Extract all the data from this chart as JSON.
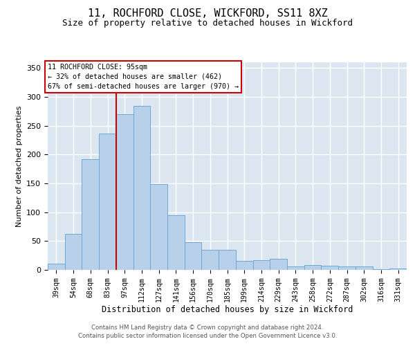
{
  "title_line1": "11, ROCHFORD CLOSE, WICKFORD, SS11 8XZ",
  "title_line2": "Size of property relative to detached houses in Wickford",
  "xlabel": "Distribution of detached houses by size in Wickford",
  "ylabel": "Number of detached properties",
  "categories": [
    "39sqm",
    "54sqm",
    "68sqm",
    "83sqm",
    "97sqm",
    "112sqm",
    "127sqm",
    "141sqm",
    "156sqm",
    "170sqm",
    "185sqm",
    "199sqm",
    "214sqm",
    "229sqm",
    "243sqm",
    "258sqm",
    "272sqm",
    "287sqm",
    "302sqm",
    "316sqm",
    "331sqm"
  ],
  "values": [
    11,
    62,
    192,
    237,
    270,
    285,
    149,
    95,
    48,
    35,
    35,
    16,
    17,
    19,
    6,
    9,
    7,
    6,
    6,
    1,
    3
  ],
  "bar_color": "#b8d0ea",
  "bar_edge_color": "#6aaad4",
  "vline_color": "#cc0000",
  "vline_pos": 4.5,
  "ylim": [
    0,
    360
  ],
  "yticks": [
    0,
    50,
    100,
    150,
    200,
    250,
    300,
    350
  ],
  "grid_color": "#c8d4e8",
  "bg_color": "#dce6f0",
  "ann_line1": "11 ROCHFORD CLOSE: 95sqm",
  "ann_line2": "← 32% of detached houses are smaller (462)",
  "ann_line3": "67% of semi-detached houses are larger (970) →",
  "ann_box_color": "#cc0000",
  "footer_line1": "Contains HM Land Registry data © Crown copyright and database right 2024.",
  "footer_line2": "Contains public sector information licensed under the Open Government Licence v3.0."
}
